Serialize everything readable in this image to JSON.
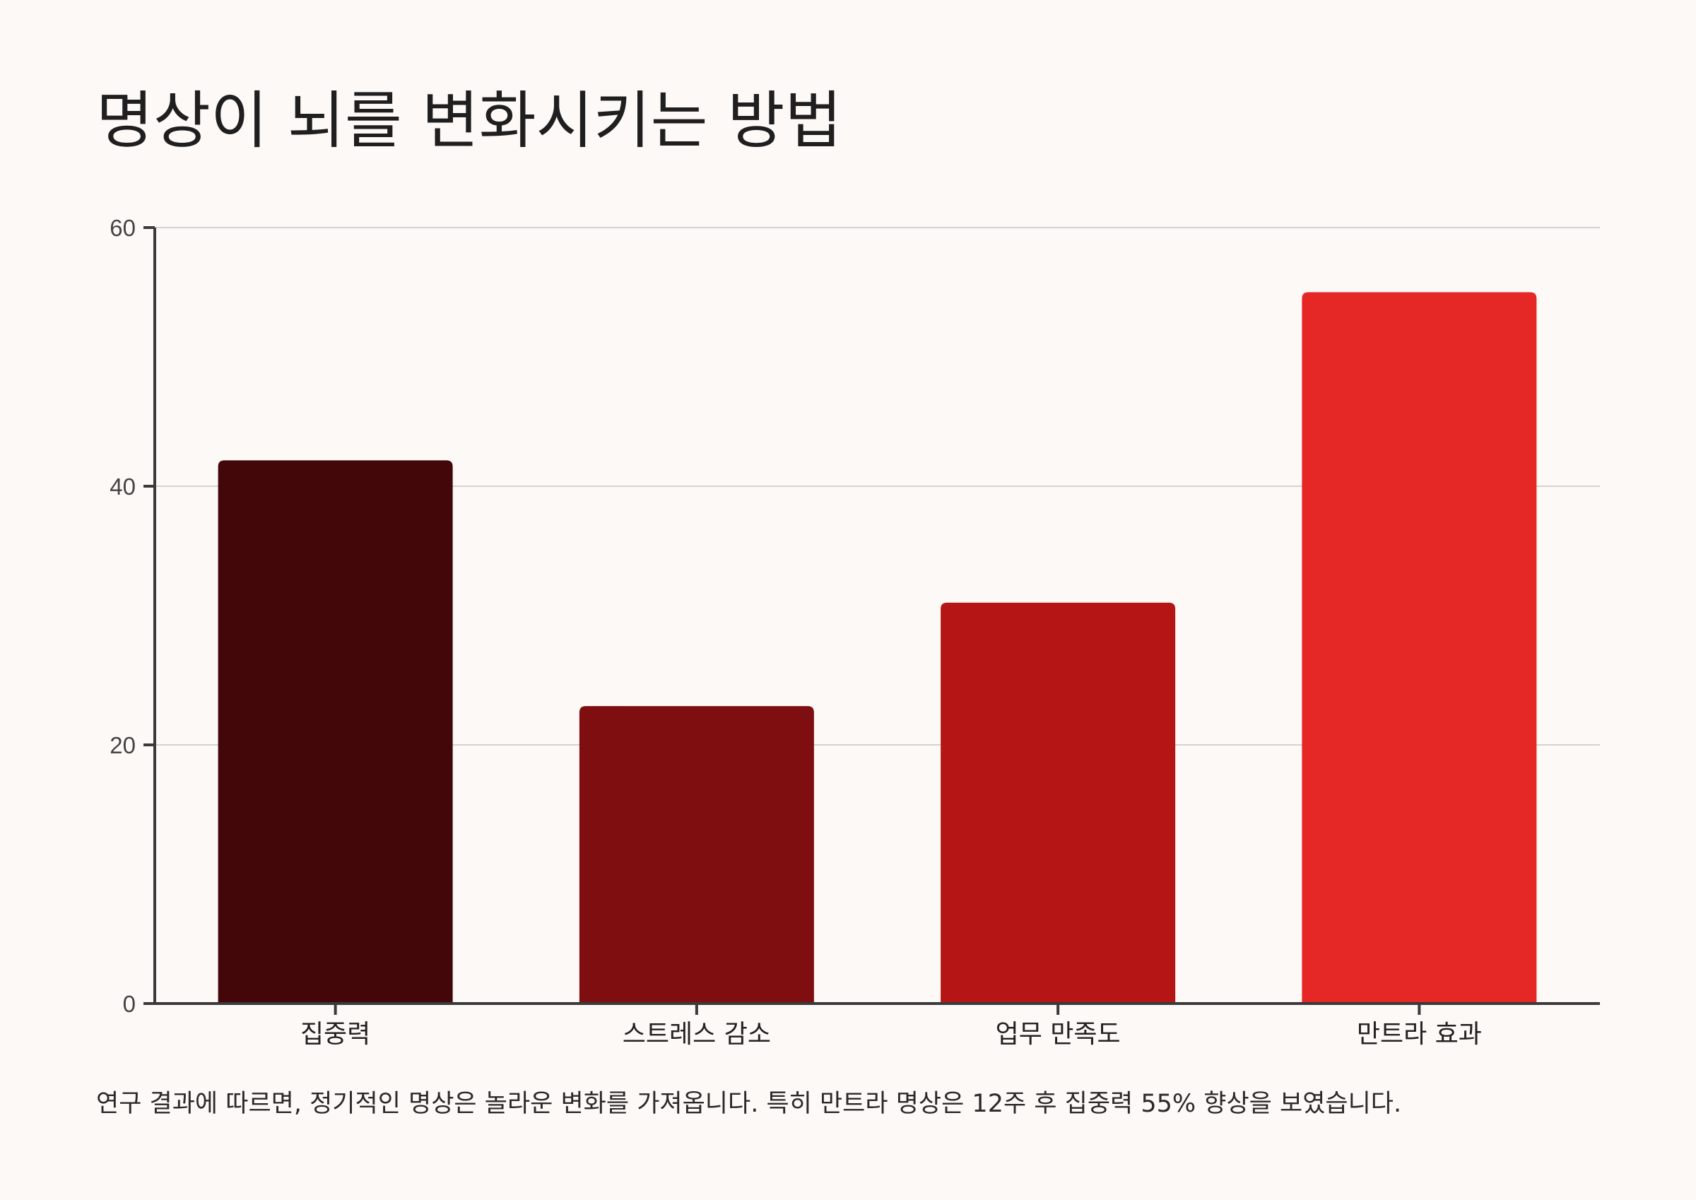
{
  "title": "명상이 뇌를 변화시키는 방법",
  "caption": "연구 결과에 따르면, 정기적인 명상은 놀라운 변화를 가져옵니다. 특히 만트라 명상은 12주 후 집중력 55% 향상을 보였습니다.",
  "chart_data": {
    "type": "bar",
    "categories": [
      "집중력",
      "스트레스 감소",
      "업무 만족도",
      "만트라 효과"
    ],
    "values": [
      42,
      23,
      31,
      55
    ],
    "colors": [
      "#440709",
      "#7e0e10",
      "#b61516",
      "#e52725"
    ],
    "ylim": [
      0,
      60
    ],
    "yticks": [
      0,
      20,
      40,
      60
    ],
    "grid": true,
    "xlabel": "",
    "ylabel": ""
  }
}
